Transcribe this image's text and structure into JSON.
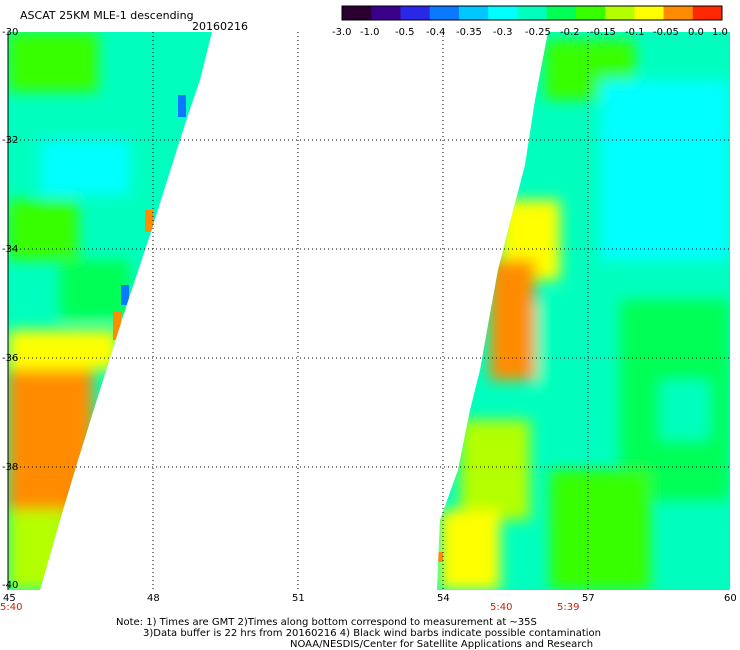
{
  "header": {
    "title": "ASCAT 25KM MLE-1 descending",
    "date": "20160216"
  },
  "colorbar": {
    "ticks": [
      "-3.0",
      "-1.0",
      "-0.5",
      "-0.4",
      "-0.35",
      "-0.3",
      "-0.25",
      "-0.2",
      "-0.15",
      "-0.1",
      "-0.05",
      "0.0",
      "1.0"
    ],
    "colors": [
      "#2a0030",
      "#3a008a",
      "#2a28e8",
      "#0a78ff",
      "#00c8ff",
      "#00ffff",
      "#00ffbe",
      "#00ff55",
      "#38ff00",
      "#b4ff00",
      "#ffff00",
      "#ff8c00",
      "#ff2800"
    ]
  },
  "palette": {
    "teal": "#00ffbe",
    "cyan": "#00ffff",
    "green": "#00ff55",
    "lime": "#b4ff00",
    "yellow": "#ffff00",
    "orange": "#ff8c00",
    "blue": "#0a78ff"
  },
  "axes": {
    "lat_labels": [
      "-30",
      "-32",
      "-34",
      "-36",
      "-38",
      "-40"
    ],
    "lon_labels": [
      "45",
      "48",
      "51",
      "54",
      "57",
      "60"
    ]
  },
  "pass_times": [
    "5:40",
    "5:40",
    "5:39"
  ],
  "notes": {
    "line1": "Note: 1) Times are GMT 2)Times along bottom correspond to measurement at ~35S",
    "line2": "3)Data buffer is 22 hrs from 20160216 4) Black wind barbs indicate possible contamination",
    "line3": "NOAA/NESDIS/Center for Satellite Applications and Research"
  }
}
